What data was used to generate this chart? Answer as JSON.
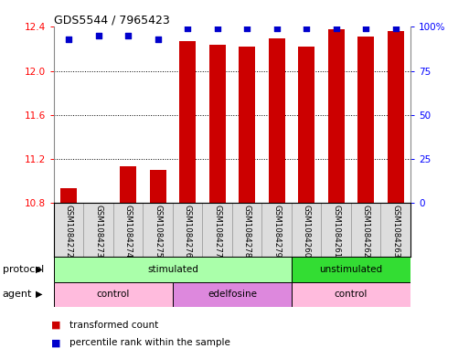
{
  "title": "GDS5544 / 7965423",
  "samples": [
    "GSM1084272",
    "GSM1084273",
    "GSM1084274",
    "GSM1084275",
    "GSM1084276",
    "GSM1084277",
    "GSM1084278",
    "GSM1084279",
    "GSM1084260",
    "GSM1084261",
    "GSM1084262",
    "GSM1084263"
  ],
  "transformed_counts": [
    10.93,
    10.8,
    11.13,
    11.1,
    12.27,
    12.24,
    12.22,
    12.3,
    12.22,
    12.38,
    12.31,
    12.36
  ],
  "percentile_ranks": [
    93,
    95,
    95,
    93,
    99,
    99,
    99,
    99,
    99,
    99,
    99,
    99
  ],
  "ylim": [
    10.8,
    12.4
  ],
  "yticks": [
    10.8,
    11.2,
    11.6,
    12.0,
    12.4
  ],
  "right_yticks": [
    0,
    25,
    50,
    75,
    100
  ],
  "bar_color": "#CC0000",
  "dot_color": "#0000CC",
  "protocol_groups": [
    {
      "label": "stimulated",
      "start": 0,
      "end": 8,
      "color": "#AAFFAA"
    },
    {
      "label": "unstimulated",
      "start": 8,
      "end": 12,
      "color": "#33DD33"
    }
  ],
  "agent_groups": [
    {
      "label": "control",
      "start": 0,
      "end": 4,
      "color": "#FFBBDD"
    },
    {
      "label": "edelfosine",
      "start": 4,
      "end": 8,
      "color": "#DD88DD"
    },
    {
      "label": "control",
      "start": 8,
      "end": 12,
      "color": "#FFBBDD"
    }
  ],
  "legend_bar_label": "transformed count",
  "legend_dot_label": "percentile rank within the sample",
  "protocol_label": "protocol",
  "agent_label": "agent",
  "bg_color": "#DDDDDD"
}
